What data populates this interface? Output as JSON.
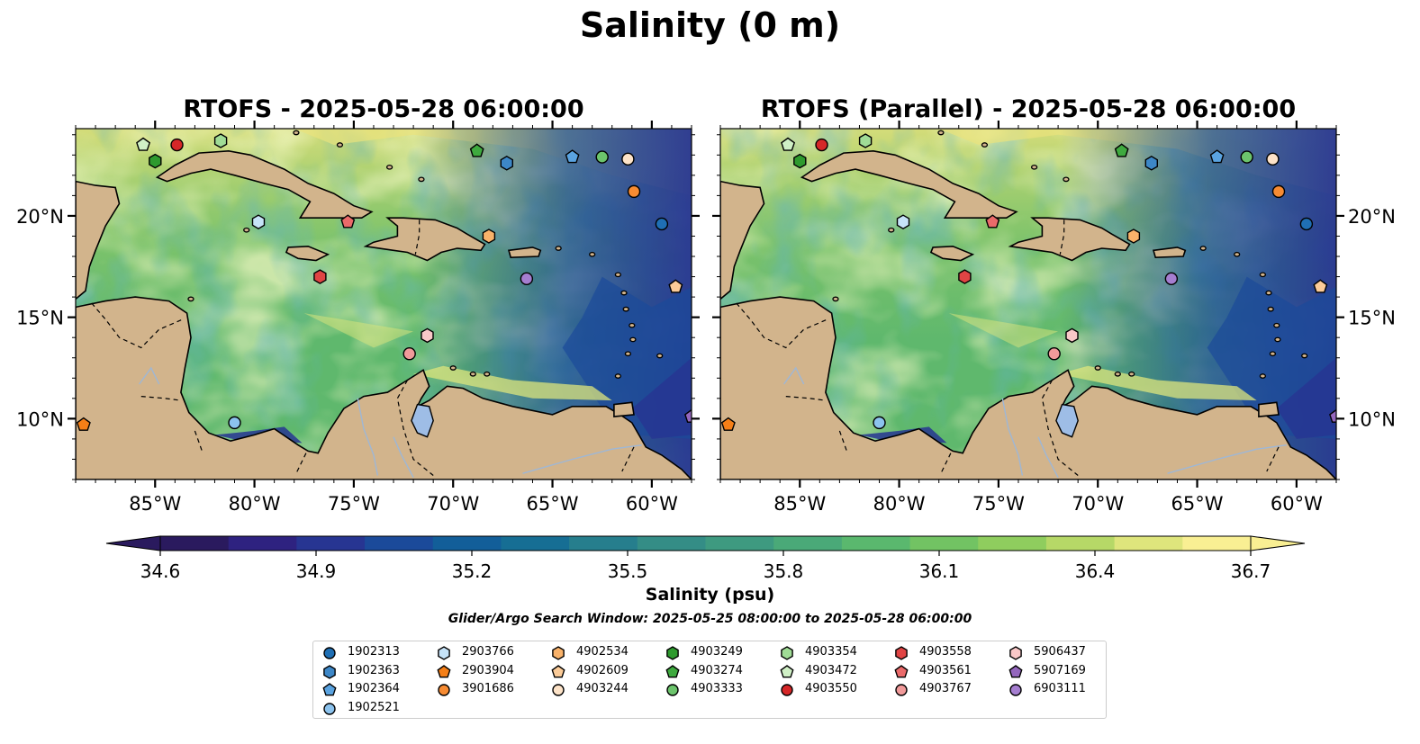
{
  "title": "Salinity (0 m)",
  "panels": [
    {
      "title": "RTOFS - 2025-05-28 06:00:00"
    },
    {
      "title": "RTOFS (Parallel) - 2025-05-28 06:00:00"
    }
  ],
  "map": {
    "lon_range": [
      -89,
      -58
    ],
    "lat_range": [
      7,
      24.3
    ],
    "lon_ticks": [
      {
        "v": -85,
        "label": "85°W"
      },
      {
        "v": -80,
        "label": "80°W"
      },
      {
        "v": -75,
        "label": "75°W"
      },
      {
        "v": -70,
        "label": "70°W"
      },
      {
        "v": -65,
        "label": "65°W"
      },
      {
        "v": -60,
        "label": "60°W"
      }
    ],
    "lat_ticks": [
      {
        "v": 10,
        "label": "10°N"
      },
      {
        "v": 15,
        "label": "15°N"
      },
      {
        "v": 20,
        "label": "20°N"
      }
    ],
    "land_color": "#d2b48c",
    "ocean_color": "#5fb86d"
  },
  "colorbar": {
    "label": "Salinity (psu)",
    "min": 34.6,
    "max": 36.7,
    "ticks": [
      "34.6",
      "34.9",
      "35.2",
      "35.5",
      "35.8",
      "36.1",
      "36.4",
      "36.7"
    ],
    "colors": [
      "#2a1a5e",
      "#2e2280",
      "#273592",
      "#1b4a9a",
      "#125e99",
      "#166e94",
      "#267e8d",
      "#348d86",
      "#3e9a80",
      "#4aa978",
      "#5ab86e",
      "#72c363",
      "#8fcd5e",
      "#b6d867",
      "#dee57c",
      "#f9ef93"
    ]
  },
  "search_window": "Glider/Argo Search Window: 2025-05-25 08:00:00 to 2025-05-28 06:00:00",
  "legend": [
    {
      "id": "1902313",
      "marker": "circle",
      "color": "#1f6fb4"
    },
    {
      "id": "1902363",
      "marker": "hexagon",
      "color": "#3d87c7"
    },
    {
      "id": "1902364",
      "marker": "pentagon",
      "color": "#5aa3e0"
    },
    {
      "id": "1902521",
      "marker": "circle",
      "color": "#8cc3ee"
    },
    {
      "id": "2903766",
      "marker": "hexagon",
      "color": "#c6e3f8"
    },
    {
      "id": "2903904",
      "marker": "pentagon",
      "color": "#f57f17"
    },
    {
      "id": "3901686",
      "marker": "circle",
      "color": "#f78b32"
    },
    {
      "id": "4902534",
      "marker": "hexagon",
      "color": "#f9b26a"
    },
    {
      "id": "4902609",
      "marker": "pentagon",
      "color": "#fbcb98"
    },
    {
      "id": "4903244",
      "marker": "circle",
      "color": "#fde3c8"
    },
    {
      "id": "4903249",
      "marker": "hexagon",
      "color": "#2e9a2e"
    },
    {
      "id": "4903274",
      "marker": "pentagon",
      "color": "#3faa3f"
    },
    {
      "id": "4903333",
      "marker": "circle",
      "color": "#6cc46c"
    },
    {
      "id": "4903354",
      "marker": "hexagon",
      "color": "#a0dc96"
    },
    {
      "id": "4903472",
      "marker": "pentagon",
      "color": "#d0f0c6"
    },
    {
      "id": "4903550",
      "marker": "circle",
      "color": "#d62728"
    },
    {
      "id": "4903558",
      "marker": "hexagon",
      "color": "#e04444"
    },
    {
      "id": "4903561",
      "marker": "pentagon",
      "color": "#ea6a6a"
    },
    {
      "id": "4903767",
      "marker": "circle",
      "color": "#f19a9a"
    },
    {
      "id": "5906437",
      "marker": "hexagon",
      "color": "#f9c8c8"
    },
    {
      "id": "5907169",
      "marker": "pentagon",
      "color": "#9467bd"
    },
    {
      "id": "6903111",
      "marker": "circle",
      "color": "#a57ed0"
    }
  ],
  "floats": [
    {
      "id": "1902313",
      "lon": -59.5,
      "lat": 19.6
    },
    {
      "id": "1902363",
      "lon": -67.3,
      "lat": 22.6
    },
    {
      "id": "1902364",
      "lon": -64.0,
      "lat": 22.9
    },
    {
      "id": "1902521",
      "lon": -81.0,
      "lat": 9.8
    },
    {
      "id": "2903766",
      "lon": -79.8,
      "lat": 19.7
    },
    {
      "id": "2903904",
      "lon": -88.6,
      "lat": 9.7
    },
    {
      "id": "3901686",
      "lon": -60.9,
      "lat": 21.2
    },
    {
      "id": "4902534",
      "lon": -68.2,
      "lat": 19.0
    },
    {
      "id": "4902609",
      "lon": -58.8,
      "lat": 16.5
    },
    {
      "id": "4903244",
      "lon": -61.2,
      "lat": 22.8
    },
    {
      "id": "4903249",
      "lon": -85.0,
      "lat": 22.7
    },
    {
      "id": "4903274",
      "lon": -68.8,
      "lat": 23.2
    },
    {
      "id": "4903333",
      "lon": -62.5,
      "lat": 22.9
    },
    {
      "id": "4903354",
      "lon": -81.7,
      "lat": 23.7
    },
    {
      "id": "4903472",
      "lon": -85.6,
      "lat": 23.5
    },
    {
      "id": "4903550",
      "lon": -83.9,
      "lat": 23.5
    },
    {
      "id": "4903558",
      "lon": -76.7,
      "lat": 17.0
    },
    {
      "id": "4903561",
      "lon": -75.3,
      "lat": 19.7
    },
    {
      "id": "4903767",
      "lon": -72.2,
      "lat": 13.2
    },
    {
      "id": "5906437",
      "lon": -71.3,
      "lat": 14.1
    },
    {
      "id": "5907169",
      "lon": -58.0,
      "lat": 10.1
    },
    {
      "id": "6903111",
      "lon": -66.3,
      "lat": 16.9
    }
  ]
}
